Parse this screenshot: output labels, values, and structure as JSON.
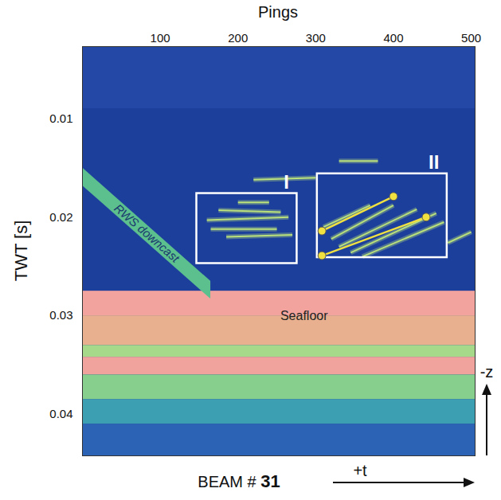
{
  "chart_data": {
    "type": "echogram",
    "x_label": "Pings",
    "y_label": "TWT [s]",
    "beam_label": "BEAM #",
    "beam": 31,
    "xlim": [
      0,
      505
    ],
    "xticks": [
      100,
      200,
      300,
      400,
      500
    ],
    "ylim": [
      0.0027,
      0.0442
    ],
    "yticks": [
      0.01,
      0.02,
      0.03,
      0.04
    ],
    "color": "#1d3f9c",
    "bands": [
      {
        "from": 0.0027,
        "to": 0.009,
        "color": "#2448a6"
      },
      {
        "from": 0.0275,
        "to": 0.03,
        "color": "#f2a39e"
      },
      {
        "from": 0.03,
        "to": 0.033,
        "color": "#e9b08f"
      },
      {
        "from": 0.033,
        "to": 0.0342,
        "color": "#a6d98a"
      },
      {
        "from": 0.0342,
        "to": 0.036,
        "color": "#f0a29c"
      },
      {
        "from": 0.036,
        "to": 0.0385,
        "color": "#86cf8c"
      },
      {
        "from": 0.0385,
        "to": 0.041,
        "color": "#3c9fb2"
      },
      {
        "from": 0.041,
        "to": 0.0442,
        "color": "#2c63b4"
      }
    ],
    "downcast": {
      "name": "RWS downcast",
      "color": "#5cbf8e",
      "x": [
        0,
        165
      ],
      "top": [
        0.015,
        0.0265
      ],
      "bottom": [
        0.0168,
        0.0283
      ]
    },
    "seafloor": {
      "name": "Seafloor",
      "x": 285,
      "y": 0.03
    },
    "streaks": {
      "color": "#b9e07a",
      "segments": [
        [
          175,
          0.0193,
          255,
          0.0195
        ],
        [
          160,
          0.0203,
          265,
          0.02
        ],
        [
          165,
          0.0212,
          250,
          0.0212
        ],
        [
          185,
          0.022,
          270,
          0.0218
        ],
        [
          200,
          0.0185,
          240,
          0.0185
        ],
        [
          310,
          0.021,
          370,
          0.0188
        ],
        [
          320,
          0.0222,
          400,
          0.0188
        ],
        [
          330,
          0.023,
          430,
          0.0192
        ],
        [
          345,
          0.0236,
          455,
          0.0196
        ],
        [
          360,
          0.024,
          465,
          0.0205
        ],
        [
          220,
          0.0162,
          300,
          0.016
        ],
        [
          330,
          0.0143,
          380,
          0.0143
        ],
        [
          470,
          0.0226,
          500,
          0.0215
        ]
      ]
    },
    "boxes": [
      {
        "label": "I",
        "x": [
          147,
          276
        ],
        "y": [
          0.0176,
          0.0247
        ]
      },
      {
        "label": "II",
        "x": [
          302,
          469
        ],
        "y": [
          0.0156,
          0.0241
        ]
      }
    ],
    "lines": {
      "color": "#f0e040",
      "segments": [
        [
          308,
          0.0214,
          400,
          0.0179
        ],
        [
          308,
          0.0239,
          442,
          0.02
        ]
      ]
    },
    "axes_arrows": {
      "vertical": "-z",
      "horizontal": "+t"
    }
  }
}
